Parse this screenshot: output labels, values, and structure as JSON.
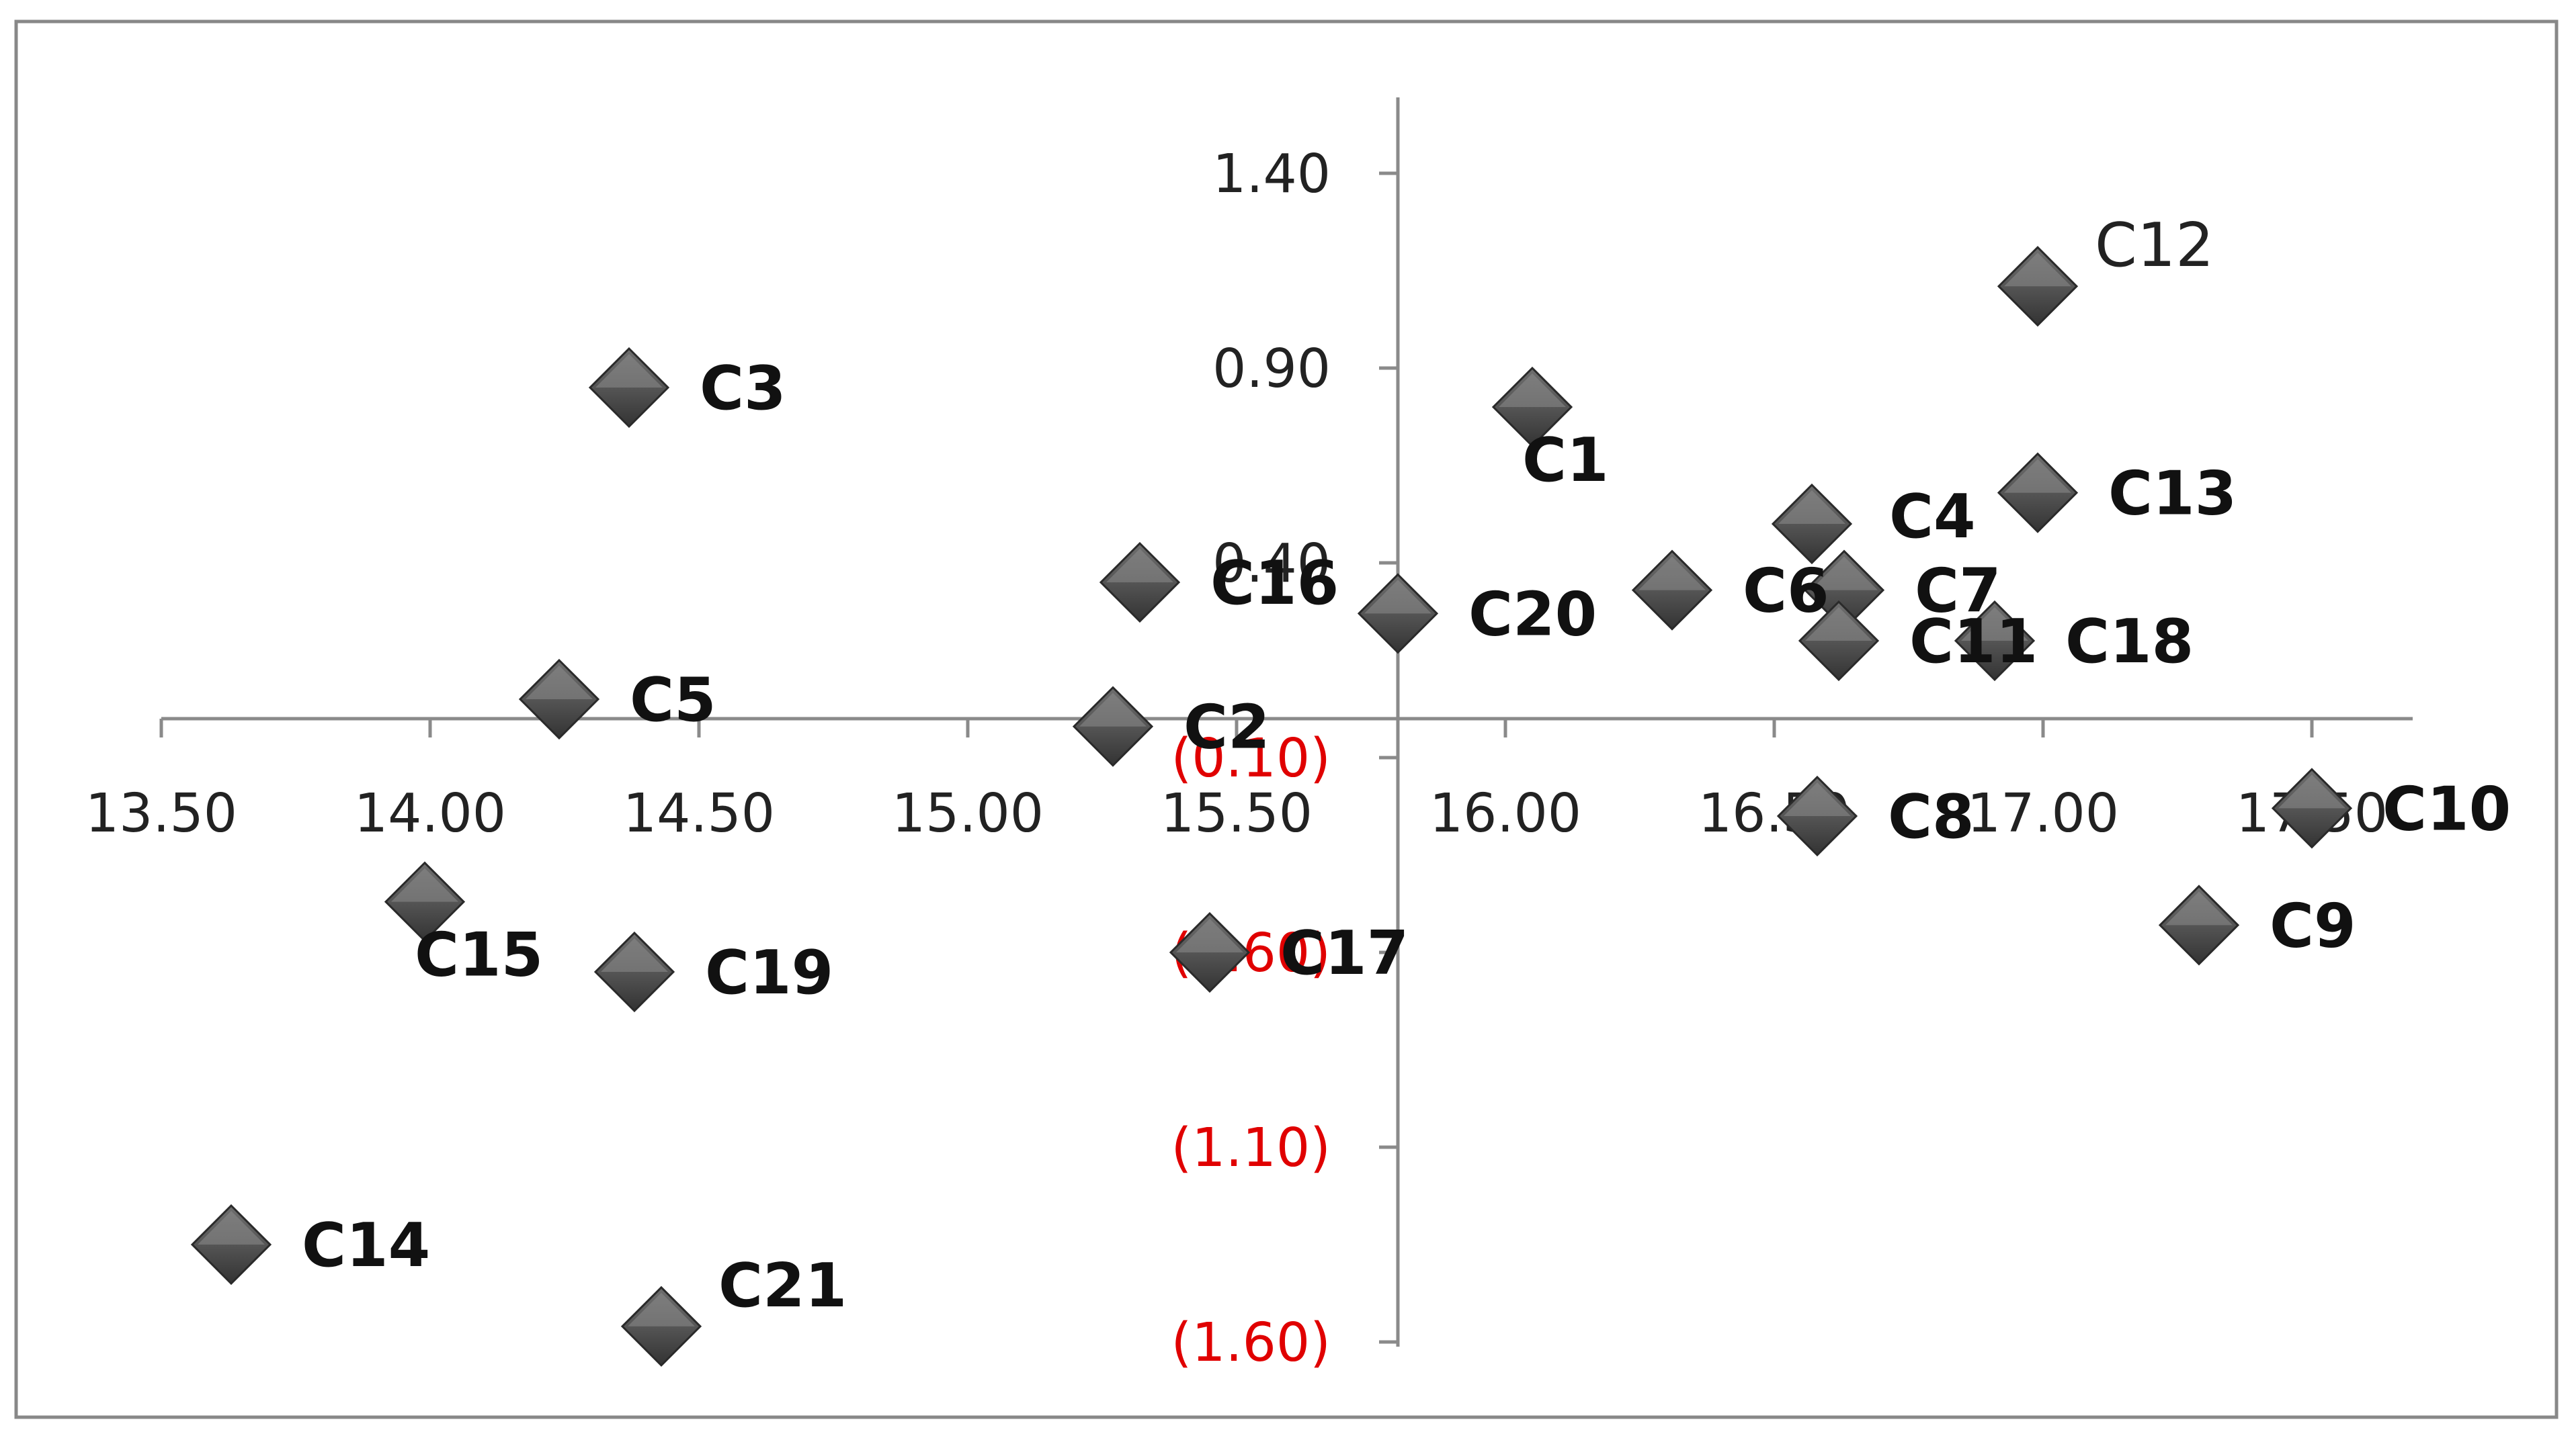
{
  "chart_data": {
    "type": "scatter",
    "title": "",
    "xlabel": "",
    "ylabel": "",
    "xlim": [
      13.5,
      17.7
    ],
    "ylim": [
      -1.7,
      1.6
    ],
    "x_axis_crosses_y": 0,
    "y_axis_crosses_x": 15.8,
    "grid": false,
    "legend": "none",
    "x_ticks": [
      {
        "value": 13.5,
        "label": "13.50"
      },
      {
        "value": 14.0,
        "label": "14.00"
      },
      {
        "value": 14.5,
        "label": "14.50"
      },
      {
        "value": 15.0,
        "label": "15.00"
      },
      {
        "value": 15.5,
        "label": "15.50"
      },
      {
        "value": 16.0,
        "label": "16.00"
      },
      {
        "value": 16.5,
        "label": "16.50"
      },
      {
        "value": 17.0,
        "label": "17.00"
      },
      {
        "value": 17.5,
        "label": "17.50"
      }
    ],
    "y_ticks": [
      {
        "value": 1.4,
        "label": "1.40",
        "negative": false
      },
      {
        "value": 0.9,
        "label": "0.90",
        "negative": false
      },
      {
        "value": 0.4,
        "label": "0.40",
        "negative": false
      },
      {
        "value": -0.1,
        "label": "(0.10)",
        "negative": true
      },
      {
        "value": -0.6,
        "label": "(0.60)",
        "negative": true
      },
      {
        "value": -1.1,
        "label": "(1.10)",
        "negative": true
      },
      {
        "value": -1.6,
        "label": "(1.60)",
        "negative": true
      }
    ],
    "points": [
      {
        "label": "C1",
        "x": 16.05,
        "y": 0.8,
        "label_pos": "below",
        "bold": true
      },
      {
        "label": "C2",
        "x": 15.27,
        "y": -0.02,
        "label_pos": "right",
        "bold": true
      },
      {
        "label": "C3",
        "x": 14.37,
        "y": 0.85,
        "label_pos": "right",
        "bold": true
      },
      {
        "label": "C4",
        "x": 16.57,
        "y": 0.5,
        "label_pos": "right-below",
        "bold": true
      },
      {
        "label": "C5",
        "x": 14.24,
        "y": 0.05,
        "label_pos": "right",
        "bold": true
      },
      {
        "label": "C6",
        "x": 16.31,
        "y": 0.33,
        "label_pos": "right",
        "bold": true
      },
      {
        "label": "C7",
        "x": 16.63,
        "y": 0.33,
        "label_pos": "right",
        "bold": true
      },
      {
        "label": "C8",
        "x": 16.58,
        "y": -0.25,
        "label_pos": "right",
        "bold": true
      },
      {
        "label": "C9",
        "x": 17.29,
        "y": -0.53,
        "label_pos": "right",
        "bold": true
      },
      {
        "label": "C10",
        "x": 17.5,
        "y": -0.23,
        "label_pos": "right",
        "bold": true
      },
      {
        "label": "C11",
        "x": 16.62,
        "y": 0.2,
        "label_pos": "right",
        "bold": true
      },
      {
        "label": "C12",
        "x": 16.99,
        "y": 1.11,
        "label_pos": "right-above",
        "bold": false
      },
      {
        "label": "C13",
        "x": 16.99,
        "y": 0.58,
        "label_pos": "right",
        "bold": true
      },
      {
        "label": "C14",
        "x": 13.63,
        "y": -1.35,
        "label_pos": "right",
        "bold": true
      },
      {
        "label": "C15",
        "x": 13.99,
        "y": -0.47,
        "label_pos": "below",
        "bold": true
      },
      {
        "label": "C16",
        "x": 15.32,
        "y": 0.35,
        "label_pos": "right",
        "bold": true
      },
      {
        "label": "C17",
        "x": 15.45,
        "y": -0.6,
        "label_pos": "right",
        "bold": true
      },
      {
        "label": "C18",
        "x": 16.91,
        "y": 0.2,
        "label_pos": "right",
        "bold": true
      },
      {
        "label": "C19",
        "x": 14.38,
        "y": -0.65,
        "label_pos": "right",
        "bold": true
      },
      {
        "label": "C20",
        "x": 15.8,
        "y": 0.27,
        "label_pos": "right",
        "bold": true
      },
      {
        "label": "C21",
        "x": 14.43,
        "y": -1.56,
        "label_pos": "right-above",
        "bold": true
      }
    ]
  }
}
